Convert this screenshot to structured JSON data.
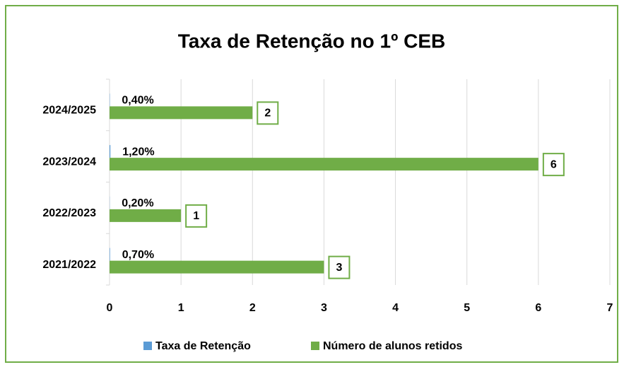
{
  "chart_data": {
    "type": "bar",
    "orientation": "horizontal",
    "title": "Taxa de Retenção no 1º CEB",
    "categories": [
      "2024/2025",
      "2023/2024",
      "2022/2023",
      "2021/2022"
    ],
    "series": [
      {
        "name": "Taxa de Retenção",
        "color": "#5b9bd5",
        "values": [
          0.004,
          0.012,
          0.002,
          0.007
        ],
        "value_labels": [
          "0,40%",
          "1,20%",
          "0,20%",
          "0,70%"
        ]
      },
      {
        "name": "Número de alunos retidos",
        "color": "#70ad47",
        "values": [
          2,
          6,
          1,
          3
        ]
      }
    ],
    "xlim": [
      0,
      7
    ],
    "xticks": [
      0,
      1,
      2,
      3,
      4,
      5,
      6,
      7
    ],
    "grid": true,
    "legend": "bottom"
  }
}
